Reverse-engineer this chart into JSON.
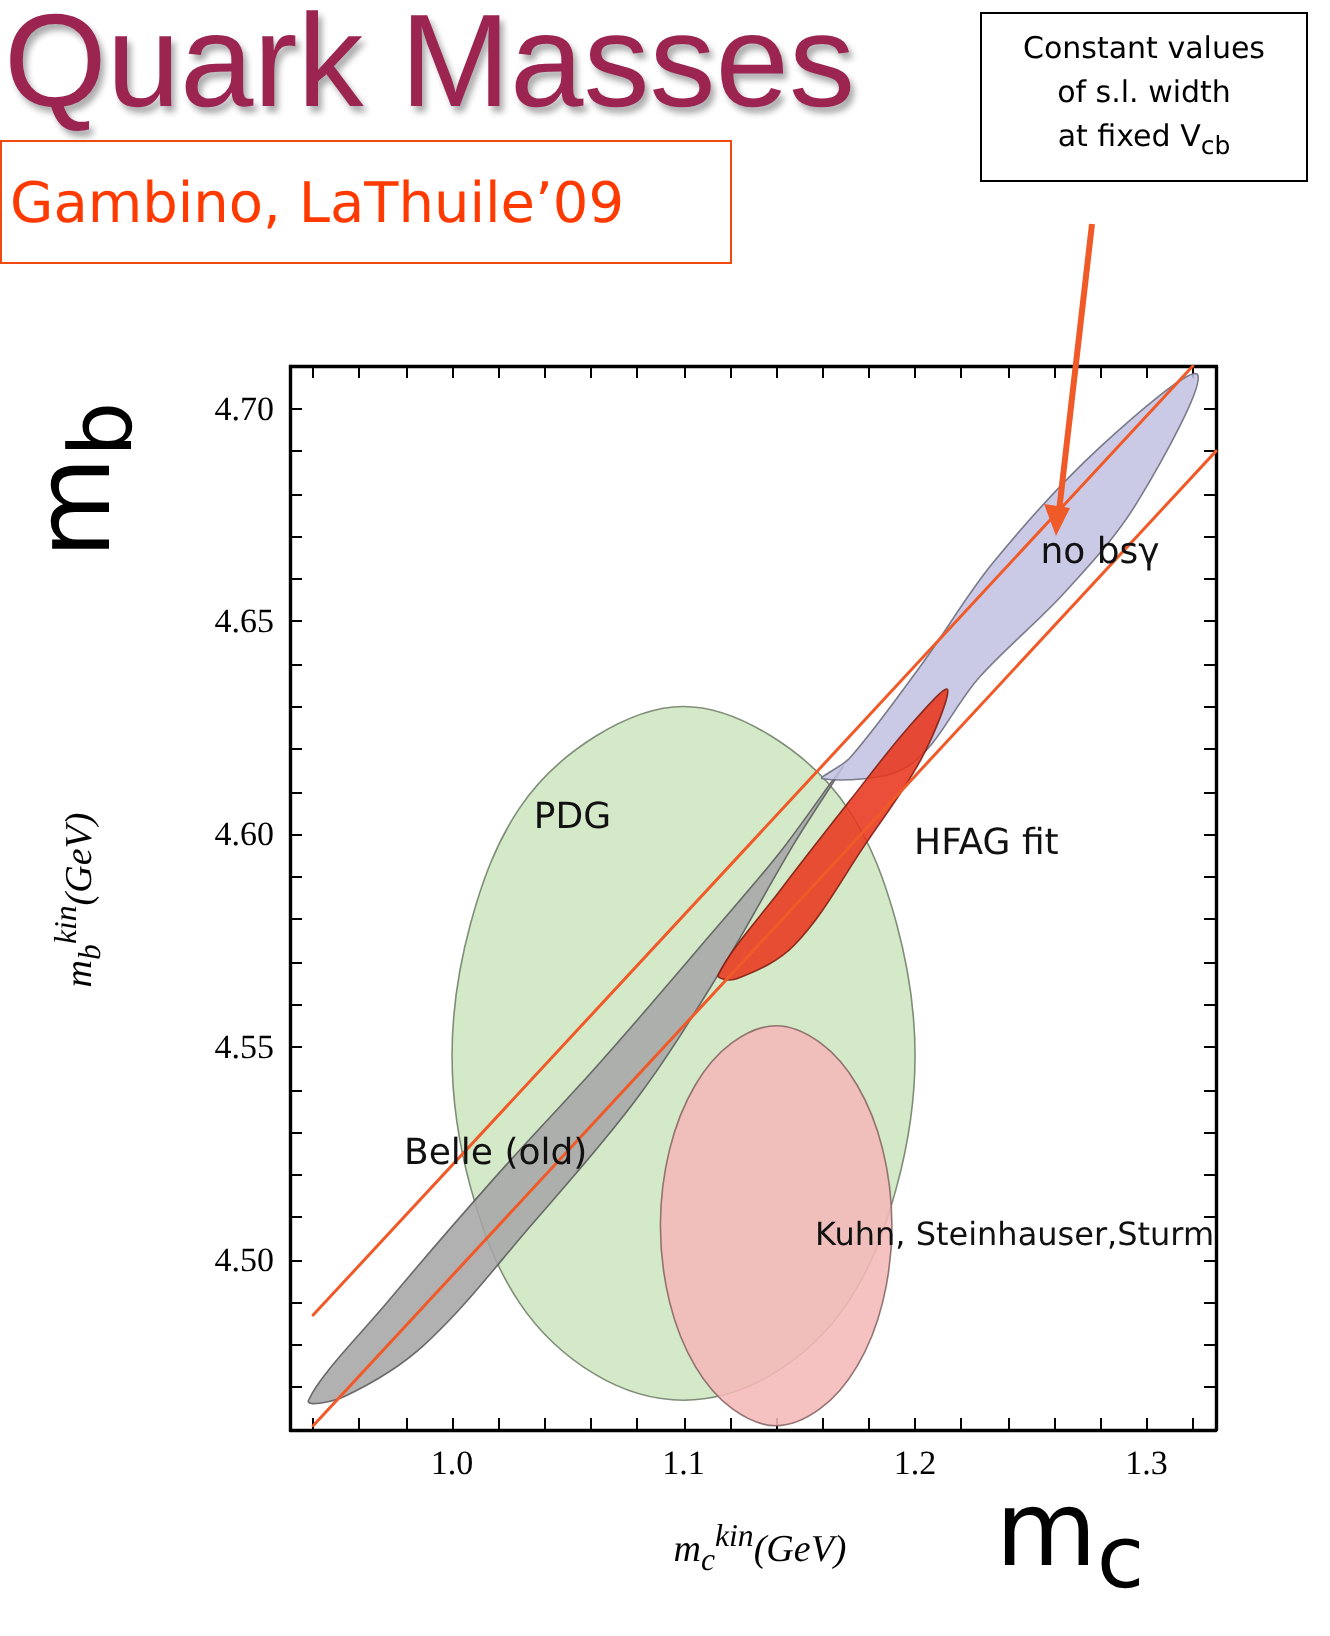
{
  "chart_data": {
    "type": "area",
    "title": "Quark Masses",
    "subtitle": "Gambino, LaThuile’09",
    "xlabel": "m$_{c}$$^{kin}$(GeV)",
    "ylabel": "m$_{b}$$^{kin}$(GeV)",
    "xlim": [
      0.93,
      1.33
    ],
    "ylim": [
      4.46,
      4.71
    ],
    "xticks": [
      {
        "value": 0.94,
        "label": null
      },
      {
        "value": 0.96,
        "label": null
      },
      {
        "value": 0.98,
        "label": null
      },
      {
        "value": 1,
        "label": "1.0"
      },
      {
        "value": 1.02,
        "label": null
      },
      {
        "value": 1.04,
        "label": null
      },
      {
        "value": 1.06,
        "label": null
      },
      {
        "value": 1.08,
        "label": null
      },
      {
        "value": 1.1,
        "label": "1.1"
      },
      {
        "value": 1.12,
        "label": null
      },
      {
        "value": 1.14,
        "label": null
      },
      {
        "value": 1.16,
        "label": null
      },
      {
        "value": 1.18,
        "label": null
      },
      {
        "value": 1.2,
        "label": "1.2"
      },
      {
        "value": 1.22,
        "label": null
      },
      {
        "value": 1.24,
        "label": null
      },
      {
        "value": 1.26,
        "label": null
      },
      {
        "value": 1.28,
        "label": null
      },
      {
        "value": 1.3,
        "label": "1.3"
      },
      {
        "value": 1.32,
        "label": null
      }
    ],
    "yticks": [
      {
        "value": 4.47,
        "label": null
      },
      {
        "value": 4.48,
        "label": null
      },
      {
        "value": 4.49,
        "label": null
      },
      {
        "value": 4.5,
        "label": "4.50"
      },
      {
        "value": 4.51,
        "label": null
      },
      {
        "value": 4.52,
        "label": null
      },
      {
        "value": 4.53,
        "label": null
      },
      {
        "value": 4.54,
        "label": null
      },
      4.55,
      {
        "value": 4.56,
        "label": null
      },
      {
        "value": 4.57,
        "label": null
      },
      {
        "value": 4.58,
        "label": null
      },
      {
        "value": 4.59,
        "label": null
      },
      {
        "value": 4.6,
        "label": "4.60"
      },
      {
        "value": 4.61,
        "label": null
      },
      {
        "value": 4.62,
        "label": null
      },
      {
        "value": 4.63,
        "label": null
      },
      {
        "value": 4.64,
        "label": null
      },
      4.65,
      {
        "value": 4.66,
        "label": null
      },
      {
        "value": 4.67,
        "label": null
      },
      {
        "value": 4.68,
        "label": null
      },
      {
        "value": 4.69,
        "label": null
      },
      {
        "value": 4.7,
        "label": "4.70"
      },
      {
        "value": 4.71,
        "label": null
      }
    ],
    "grid": false,
    "series": [
      {
        "name": "PDG",
        "color": "#cde6c0",
        "x": [
          1.2,
          1.192,
          1.171,
          1.138,
          1.1,
          1.062,
          1.029,
          1.008,
          1.0,
          1.008,
          1.029,
          1.062,
          1.1,
          1.138,
          1.171,
          1.192,
          1.2
        ],
        "values": [
          4.548,
          4.579,
          4.606,
          4.623,
          4.63,
          4.623,
          4.606,
          4.579,
          4.548,
          4.517,
          4.49,
          4.473,
          4.467,
          4.473,
          4.49,
          4.517,
          4.548
        ]
      },
      {
        "name": "Kuhn, Steinhauser,Sturm",
        "color": "#f4b8b8",
        "x": [
          1.19,
          1.186,
          1.175,
          1.159,
          1.14,
          1.121,
          1.105,
          1.094,
          1.09,
          1.094,
          1.105,
          1.121,
          1.14,
          1.159,
          1.175,
          1.186,
          1.19
        ],
        "values": [
          4.508,
          4.526,
          4.541,
          4.551,
          4.555,
          4.551,
          4.541,
          4.526,
          4.508,
          4.49,
          4.475,
          4.465,
          4.461,
          4.465,
          4.475,
          4.49,
          4.508
        ]
      },
      {
        "name": "Belle (old)",
        "color": "#a6a6a6",
        "x": [
          0.938,
          0.972,
          1.018,
          1.065,
          1.111,
          1.142,
          1.169,
          1.148,
          1.115,
          1.08,
          1.034,
          0.988,
          0.954,
          0.938
        ],
        "values": [
          4.467,
          4.49,
          4.519,
          4.547,
          4.576,
          4.596,
          4.616,
          4.598,
          4.567,
          4.538,
          4.508,
          4.48,
          4.468,
          4.467
        ]
      },
      {
        "name": "no bsγ",
        "color": "#c3c3e2",
        "x": [
          1.16,
          1.172,
          1.203,
          1.234,
          1.28,
          1.322,
          1.296,
          1.265,
          1.228,
          1.197,
          1.16
        ],
        "values": [
          4.613,
          4.618,
          4.64,
          4.664,
          4.691,
          4.708,
          4.678,
          4.657,
          4.637,
          4.616,
          4.613
        ]
      },
      {
        "name": "HFAG fit",
        "color": "#e8371e",
        "x": [
          1.115,
          1.142,
          1.172,
          1.197,
          1.214,
          1.203,
          1.179,
          1.148,
          1.123,
          1.115
        ],
        "values": [
          4.567,
          4.587,
          4.608,
          4.625,
          4.634,
          4.618,
          4.598,
          4.574,
          4.566,
          4.567
        ]
      },
      {
        "type": "line",
        "color": "#f05a28",
        "x": [
          0.94,
          1.32
        ],
        "values": [
          4.487,
          4.71
        ]
      },
      {
        "type": "line",
        "color": "#f05a28",
        "x": [
          0.94,
          1.33
        ],
        "values": [
          4.461,
          4.69
        ]
      }
    ],
    "annotations": [
      "m$_{b}$",
      "m$_{c}$",
      "Constant values\nof s.l. width\nat fixed V$_{cb}$"
    ]
  }
}
